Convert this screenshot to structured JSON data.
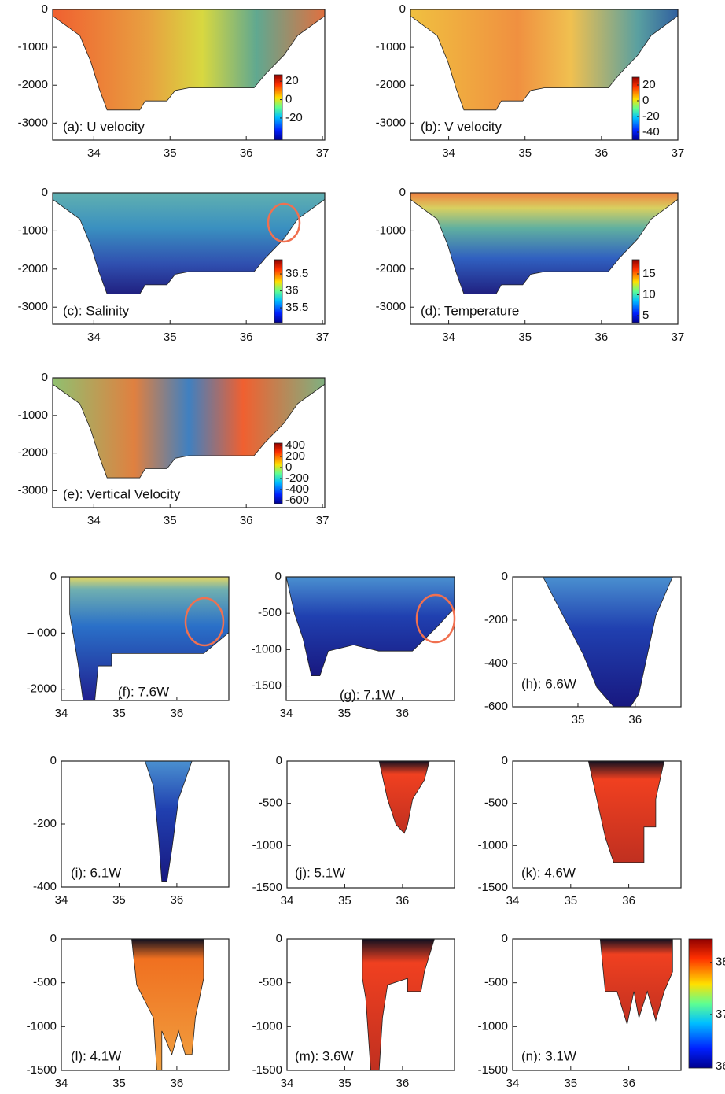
{
  "panels": [
    {
      "label": "(a): U velocity",
      "xlim": [
        33.46,
        37.03
      ],
      "ylim": [
        -3450,
        0
      ],
      "xticks": [
        34,
        35,
        36,
        37
      ],
      "yticks": [
        0,
        -1000,
        -2000,
        -3000
      ],
      "colorbar": {
        "lim": [
          -44,
          27
        ],
        "ticks": [
          20,
          0,
          -20
        ]
      }
    },
    {
      "label": "(b): V velocity",
      "xlim": [
        33.5,
        37
      ],
      "ylim": [
        -3450,
        0
      ],
      "xticks": [
        34,
        35,
        36,
        37
      ],
      "yticks": [
        0,
        -1000,
        -2000,
        -3000
      ],
      "colorbar": {
        "lim": [
          -50,
          30
        ],
        "ticks": [
          20,
          0,
          -20,
          -40
        ]
      }
    },
    {
      "label": "(c): Salinity",
      "xlim": [
        33.46,
        37.03
      ],
      "ylim": [
        -3450,
        0
      ],
      "xticks": [
        34,
        35,
        36,
        37
      ],
      "yticks": [
        0,
        -1000,
        -2000,
        -3000
      ],
      "colorbar": {
        "lim": [
          35.06,
          36.92
        ],
        "ticks": [
          36.5,
          36,
          35.5
        ]
      }
    },
    {
      "label": "(d): Temperature",
      "xlim": [
        33.5,
        37
      ],
      "ylim": [
        -3450,
        0
      ],
      "xticks": [
        34,
        35,
        36,
        37
      ],
      "yticks": [
        0,
        -1000,
        -2000,
        -3000
      ],
      "colorbar": {
        "lim": [
          3.3,
          18.4
        ],
        "ticks": [
          15,
          10,
          5
        ]
      }
    },
    {
      "label": "(e): Vertical Velocity",
      "xlim": [
        33.46,
        37.03
      ],
      "ylim": [
        -3450,
        0
      ],
      "xticks": [
        34,
        35,
        36,
        37
      ],
      "yticks": [
        0,
        -1000,
        -2000,
        -3000
      ],
      "colorbar": {
        "lim": [
          -657,
          443
        ],
        "ticks": [
          400,
          200,
          0,
          -200,
          -400,
          -600
        ]
      }
    },
    {
      "label": "(f): 7.6W",
      "xlim": [
        34,
        36.9
      ],
      "ylim": [
        -2200,
        0
      ],
      "xticks": [
        34,
        35,
        36
      ],
      "yticks": [
        0,
        {
          "value": -1000,
          "label": "– 000"
        },
        -2000
      ]
    },
    {
      "label": "(g): 7.1W",
      "xlim": [
        34,
        36.9
      ],
      "ylim": [
        -1700,
        0
      ],
      "xticks": [
        34,
        35,
        36
      ],
      "yticks": [
        0,
        -500,
        -1000,
        -1500
      ]
    },
    {
      "label": "(h): 6.6W",
      "xlim": [
        33.86,
        36.8
      ],
      "ylim": [
        -600,
        0
      ],
      "xticks": [
        35,
        36
      ],
      "yticks": [
        0,
        -200,
        -400,
        -600
      ]
    },
    {
      "label": "(i): 6.1W",
      "xlim": [
        34,
        36.9
      ],
      "ylim": [
        -400,
        0
      ],
      "xticks": [
        34,
        35,
        36
      ],
      "yticks": [
        0,
        -200,
        -400
      ]
    },
    {
      "label": "(j): 5.1W",
      "xlim": [
        34,
        36.9
      ],
      "ylim": [
        -1500,
        0
      ],
      "xticks": [
        34,
        35,
        36
      ],
      "yticks": [
        0,
        -500,
        -1000,
        -1500
      ]
    },
    {
      "label": "(k): 4.6W",
      "xlim": [
        34,
        36.9
      ],
      "ylim": [
        -1500,
        0
      ],
      "xticks": [
        34,
        35,
        36
      ],
      "yticks": [
        0,
        -500,
        -1000,
        -1500
      ]
    },
    {
      "label": "(l): 4.1W",
      "xlim": [
        34,
        36.9
      ],
      "ylim": [
        -1500,
        0
      ],
      "xticks": [
        34,
        35,
        36
      ],
      "yticks": [
        0,
        -500,
        -1000,
        -1500
      ]
    },
    {
      "label": "(m): 3.6W",
      "xlim": [
        34,
        36.9
      ],
      "ylim": [
        -1500,
        0
      ],
      "xticks": [
        34,
        35,
        36
      ],
      "yticks": [
        0,
        -500,
        -1000,
        -1500
      ]
    },
    {
      "label": "(n): 3.1W",
      "xlim": [
        34,
        36.9
      ],
      "ylim": [
        -1500,
        0
      ],
      "xticks": [
        34,
        35,
        36
      ],
      "yticks": [
        0,
        -500,
        -1000,
        -1500
      ],
      "colorbar": {
        "lim": [
          35.97,
          38.45
        ],
        "ticks": [
          38,
          37,
          36
        ]
      }
    }
  ]
}
